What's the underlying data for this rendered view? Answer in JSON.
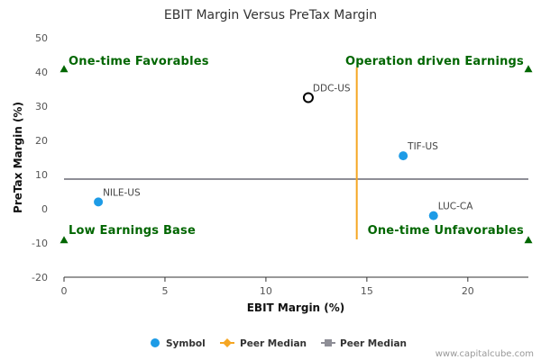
{
  "chart_data": {
    "type": "scatter",
    "title": "EBIT Margin Versus PreTax Margin",
    "xlabel": "EBIT Margin (%)",
    "ylabel": "PreTax Margin (%)",
    "xlim": [
      0,
      23
    ],
    "ylim": [
      -20,
      50
    ],
    "xticks": [
      "0",
      "5",
      "10",
      "15",
      "20"
    ],
    "yticks": [
      "50",
      "40",
      "30",
      "20",
      "10",
      "0",
      "-10",
      "-20"
    ],
    "points": [
      {
        "label": "DDC-US",
        "x": 12.1,
        "y": 32.5,
        "style": "hollow"
      },
      {
        "label": "TIF-US",
        "x": 16.8,
        "y": 15.5,
        "style": "filled"
      },
      {
        "label": "NILE-US",
        "x": 1.7,
        "y": 2.0,
        "style": "filled"
      },
      {
        "label": "LUC-CA",
        "x": 18.3,
        "y": -2.0,
        "style": "filled"
      }
    ],
    "peer_median_x": 14.5,
    "peer_median_y": 8.7,
    "quadrants": {
      "top_left": "One-time Favorables",
      "top_right": "Operation driven Earnings",
      "bottom_left": "Low Earnings Base",
      "bottom_right": "One-time Unfavorables"
    },
    "corner_marker_y": [
      41,
      -9
    ],
    "legend": [
      {
        "label": "Symbol",
        "marker": "circle"
      },
      {
        "label": "Peer Median",
        "marker": "diamond-line"
      },
      {
        "label": "Peer Median",
        "marker": "square-line"
      }
    ],
    "legend_position": "bottom",
    "grid": false
  },
  "watermark": "www.capitalcube.com",
  "colors": {
    "point": "#1d9be6",
    "median_x": "#f5a623",
    "median_y": "#8e8e96",
    "quadrant_text": "#006600",
    "axis": "#333333"
  }
}
